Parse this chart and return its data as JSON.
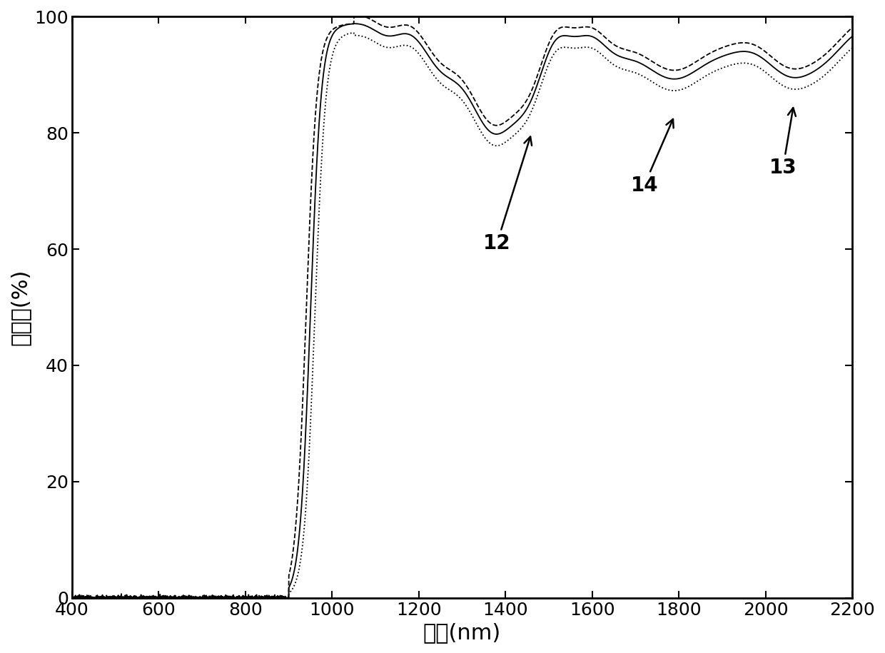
{
  "xlabel": "波长(nm)",
  "ylabel": "透射率(%)",
  "xlim": [
    400,
    2200
  ],
  "ylim": [
    0,
    100
  ],
  "xticks": [
    400,
    600,
    800,
    1000,
    1200,
    1400,
    1600,
    1800,
    2000,
    2200
  ],
  "yticks": [
    0,
    20,
    40,
    60,
    80,
    100
  ],
  "background_color": "#ffffff",
  "line_color": "#000000",
  "axis_label_fontsize": 22,
  "tick_fontsize": 18
}
